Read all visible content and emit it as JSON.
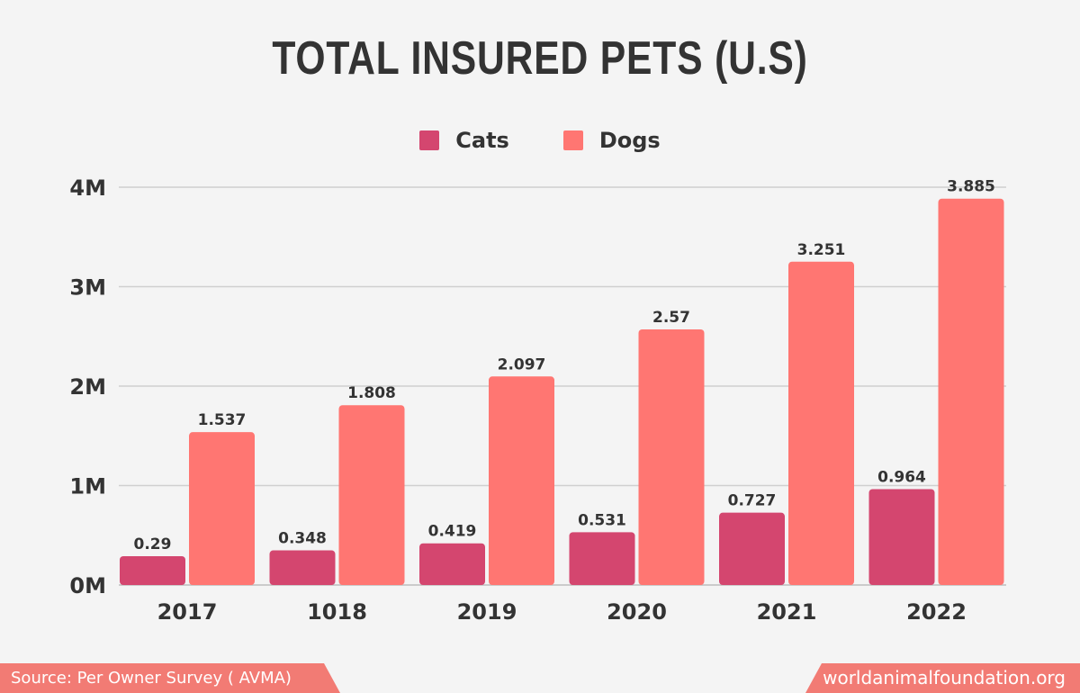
{
  "title": "TOTAL INSURED PETS (U.S)",
  "footer": {
    "source": "Source: Per Owner Survey ( AVMA)",
    "site": "worldanimalfoundation.org"
  },
  "colors": {
    "cats": "#d4466f",
    "dogs": "#ff7672",
    "grid": "#cfcfcf",
    "text": "#333333"
  },
  "chart_data": {
    "type": "bar",
    "title": "TOTAL INSURED PETS (U.S)",
    "categories": [
      "2017",
      "1018",
      "2019",
      "2020",
      "2021",
      "2022"
    ],
    "series": [
      {
        "name": "Cats",
        "values": [
          0.29,
          0.348,
          0.419,
          0.531,
          0.727,
          0.964
        ],
        "labels": [
          "0.29",
          "0.348",
          "0.419",
          "0.531",
          "0.727",
          "0.964"
        ]
      },
      {
        "name": "Dogs",
        "values": [
          1.537,
          1.808,
          2.097,
          2.57,
          3.251,
          3.885
        ],
        "labels": [
          "1.537",
          "1.808",
          "2.097",
          "2.57",
          "3.251",
          "3.885"
        ]
      }
    ],
    "yticks": [
      "0M",
      "1M",
      "2M",
      "3M",
      "4M"
    ],
    "ylim": [
      0,
      4
    ],
    "grid": true,
    "legend": "top-center"
  }
}
